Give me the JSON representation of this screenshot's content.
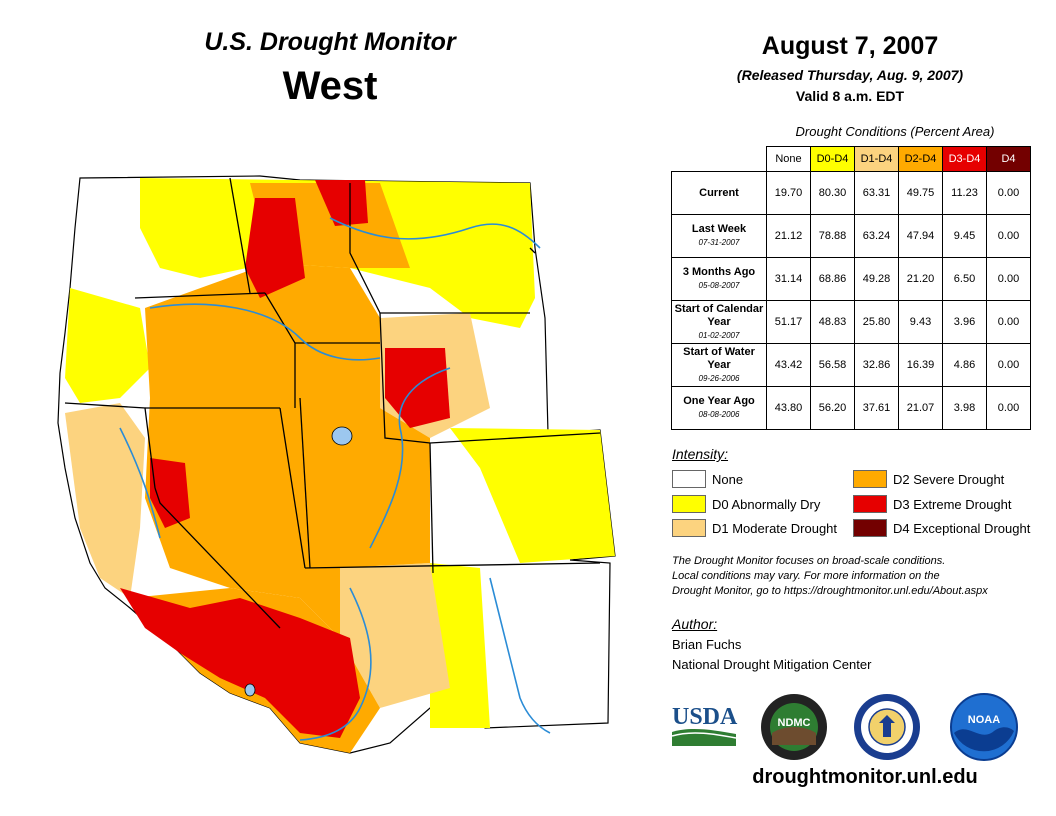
{
  "header": {
    "title": "U.S. Drought Monitor",
    "region": "West",
    "date": "August 7, 2007",
    "released": "(Released Thursday, Aug. 9, 2007)",
    "valid": "Valid 8 a.m. EDT"
  },
  "table": {
    "caption": "Drought Conditions (Percent Area)",
    "columns": [
      "None",
      "D0-D4",
      "D1-D4",
      "D2-D4",
      "D3-D4",
      "D4"
    ],
    "rows": [
      {
        "label": "Current",
        "date": "",
        "values": [
          "19.70",
          "80.30",
          "63.31",
          "49.75",
          "11.23",
          "0.00"
        ]
      },
      {
        "label": "Last Week",
        "date": "07-31-2007",
        "values": [
          "21.12",
          "78.88",
          "63.24",
          "47.94",
          "9.45",
          "0.00"
        ]
      },
      {
        "label": "3 Months Ago",
        "date": "05-08-2007",
        "values": [
          "31.14",
          "68.86",
          "49.28",
          "21.20",
          "6.50",
          "0.00"
        ]
      },
      {
        "label": "Start of Calendar Year",
        "date": "01-02-2007",
        "values": [
          "51.17",
          "48.83",
          "25.80",
          "9.43",
          "3.96",
          "0.00"
        ]
      },
      {
        "label": "Start of Water Year",
        "date": "09-26-2006",
        "values": [
          "43.42",
          "56.58",
          "32.86",
          "16.39",
          "4.86",
          "0.00"
        ]
      },
      {
        "label": "One Year Ago",
        "date": "08-08-2006",
        "values": [
          "43.80",
          "56.20",
          "37.61",
          "21.07",
          "3.98",
          "0.00"
        ]
      }
    ]
  },
  "legend": {
    "heading": "Intensity:",
    "items": [
      {
        "label": "None",
        "color": "#ffffff"
      },
      {
        "label": "D0 Abnormally Dry",
        "color": "#ffff00"
      },
      {
        "label": "D1 Moderate Drought",
        "color": "#fcd37f"
      },
      {
        "label": "D2 Severe Drought",
        "color": "#ffaa00"
      },
      {
        "label": "D3 Extreme Drought",
        "color": "#e60000"
      },
      {
        "label": "D4 Exceptional Drought",
        "color": "#730000"
      }
    ]
  },
  "note": {
    "line1": "The Drought Monitor focuses on broad-scale conditions.",
    "line2": "Local conditions may vary. For more information on the",
    "line3": "Drought Monitor, go to https://droughtmonitor.unl.edu/About.aspx"
  },
  "author": {
    "heading": "Author:",
    "name": "Brian Fuchs",
    "org": "National Drought Mitigation Center"
  },
  "logos": {
    "usda": "USDA",
    "ndmc": "NDMC",
    "noaa": "NOAA"
  },
  "footer": {
    "url": "droughtmonitor.unl.edu"
  }
}
